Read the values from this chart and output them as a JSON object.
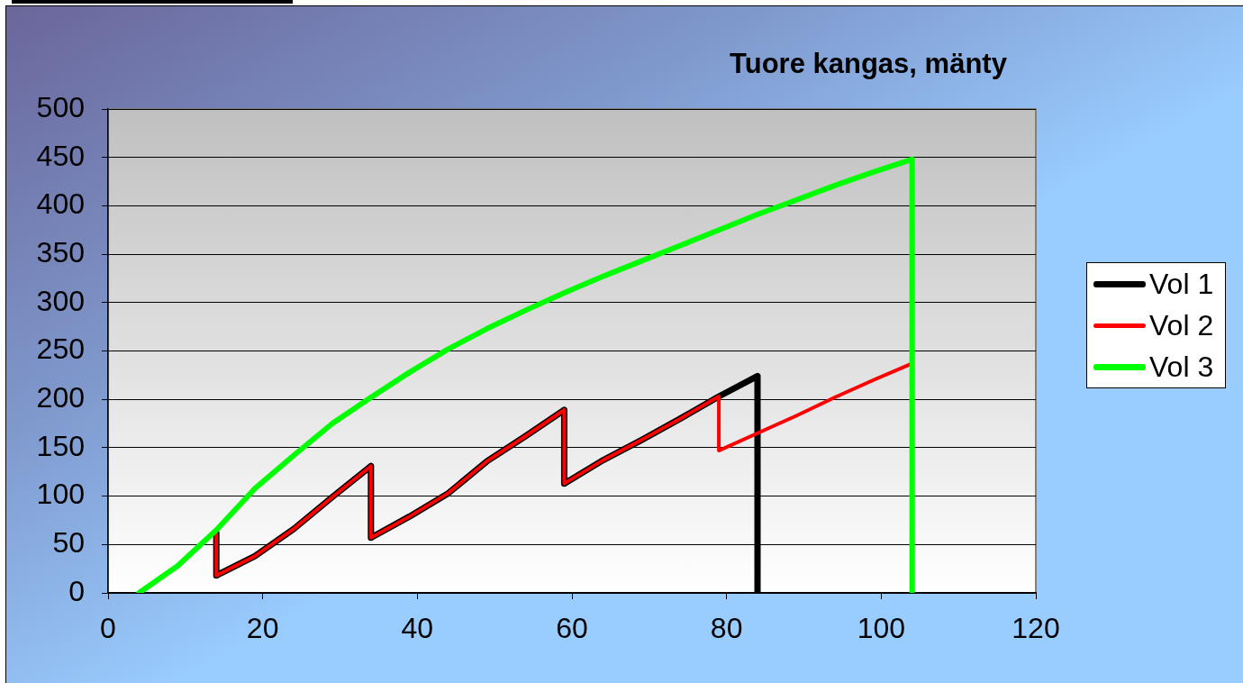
{
  "chart_data": {
    "type": "line",
    "title": "Tuore kangas, mänty",
    "series": [
      {
        "name": "Vol 1",
        "color": "#000000",
        "x": [
          14,
          14,
          19,
          24,
          29,
          34,
          34,
          39,
          44,
          49,
          54,
          59,
          59,
          64,
          69,
          74,
          79,
          84,
          84
        ],
        "values": [
          62,
          18,
          38,
          66,
          99,
          131,
          57,
          79,
          103,
          136,
          162,
          189,
          113,
          137,
          158,
          180,
          203,
          224,
          0
        ]
      },
      {
        "name": "Vol 2",
        "color": "#ff0000",
        "x": [
          14,
          14,
          19,
          24,
          29,
          34,
          34,
          39,
          44,
          49,
          54,
          59,
          59,
          64,
          69,
          74,
          79,
          79,
          84,
          89,
          94,
          99,
          104
        ],
        "values": [
          62,
          18,
          38,
          66,
          99,
          131,
          57,
          79,
          103,
          136,
          162,
          189,
          113,
          137,
          158,
          180,
          203,
          147,
          165,
          183,
          202,
          220,
          237
        ]
      },
      {
        "name": "Vol 3",
        "color": "#00ff00",
        "x": [
          4,
          9,
          14,
          19,
          24,
          29,
          34,
          39,
          44,
          49,
          54,
          59,
          64,
          69,
          74,
          79,
          84,
          89,
          94,
          99,
          104,
          104
        ],
        "values": [
          0,
          28,
          65,
          108,
          142,
          175,
          202,
          228,
          252,
          273,
          292,
          310,
          327,
          343,
          359,
          375,
          391,
          406,
          421,
          435,
          448,
          0
        ]
      }
    ],
    "xlim": [
      0,
      120
    ],
    "xticks": [
      0,
      20,
      40,
      60,
      80,
      100,
      120
    ],
    "ylim": [
      0,
      500
    ],
    "yticks": [
      0,
      50,
      100,
      150,
      200,
      250,
      300,
      350,
      400,
      450,
      500
    ],
    "grid": "y",
    "legend": "right",
    "marker": "none",
    "line_style": "solid"
  }
}
